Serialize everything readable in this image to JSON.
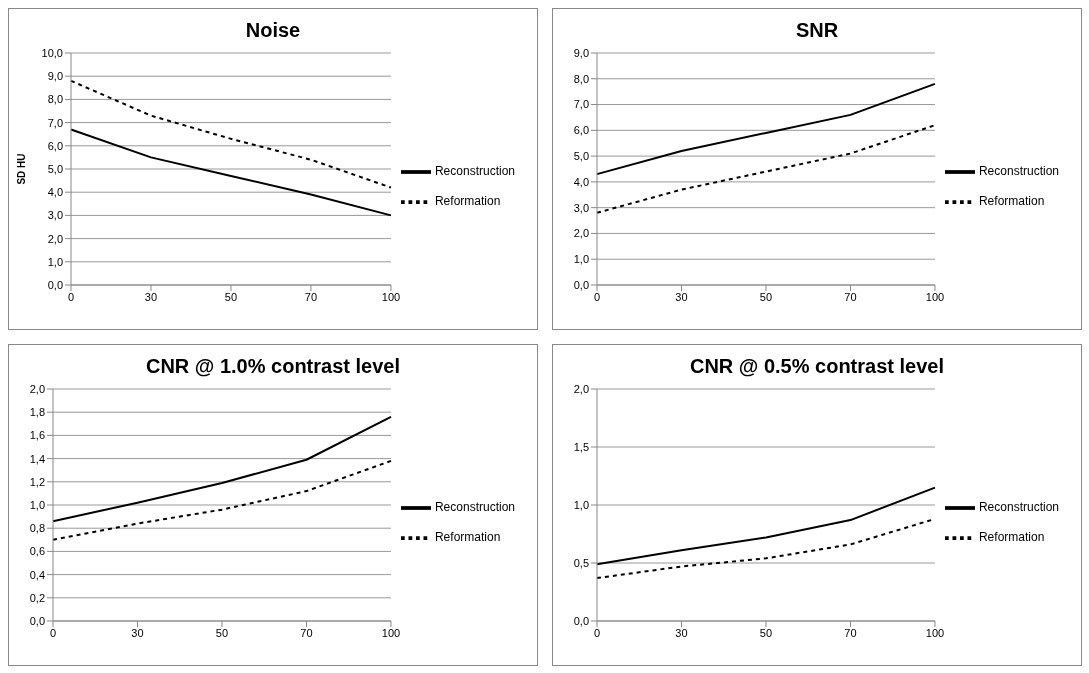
{
  "chart_data": [
    {
      "type": "line",
      "title": "Noise",
      "ylabel": "SD HU",
      "categories": [
        "0",
        "30",
        "50",
        "70",
        "100"
      ],
      "series": [
        {
          "name": "Reconstruction",
          "color": "#000000",
          "line_style": "solid",
          "values": [
            6.7,
            5.5,
            4.7,
            3.9,
            3.0
          ]
        },
        {
          "name": "Reformation",
          "color": "#000000",
          "line_style": "dashed",
          "values": [
            8.8,
            7.3,
            6.3,
            5.4,
            4.2
          ]
        }
      ],
      "ylim": [
        0,
        10
      ],
      "yticks": [
        {
          "value": 0,
          "label": "0,0"
        },
        {
          "value": 1,
          "label": "1,0"
        },
        {
          "value": 2,
          "label": "2,0"
        },
        {
          "value": 3,
          "label": "3,0"
        },
        {
          "value": 4,
          "label": "4,0"
        },
        {
          "value": 5,
          "label": "5,0"
        },
        {
          "value": 6,
          "label": "6,0"
        },
        {
          "value": 7,
          "label": "7,0"
        },
        {
          "value": 8,
          "label": "8,0"
        },
        {
          "value": 9,
          "label": "9,0"
        },
        {
          "value": 10,
          "label": "10,0"
        }
      ],
      "grid": "y",
      "legend": "right"
    },
    {
      "type": "line",
      "title": "SNR",
      "categories": [
        "0",
        "30",
        "50",
        "70",
        "100"
      ],
      "series": [
        {
          "name": "Reconstruction",
          "color": "#000000",
          "line_style": "solid",
          "values": [
            4.3,
            5.2,
            5.9,
            6.6,
            7.8
          ]
        },
        {
          "name": "Reformation",
          "color": "#000000",
          "line_style": "dashed",
          "values": [
            2.8,
            3.7,
            4.4,
            5.1,
            6.2
          ]
        }
      ],
      "ylim": [
        0,
        9
      ],
      "yticks": [
        {
          "value": 0,
          "label": "0,0"
        },
        {
          "value": 1,
          "label": "1,0"
        },
        {
          "value": 2,
          "label": "2,0"
        },
        {
          "value": 3,
          "label": "3,0"
        },
        {
          "value": 4,
          "label": "4,0"
        },
        {
          "value": 5,
          "label": "5,0"
        },
        {
          "value": 6,
          "label": "6,0"
        },
        {
          "value": 7,
          "label": "7,0"
        },
        {
          "value": 8,
          "label": "8,0"
        },
        {
          "value": 9,
          "label": "9,0"
        }
      ],
      "grid": "y",
      "legend": "right"
    },
    {
      "type": "line",
      "title": "CNR @ 1.0% contrast level",
      "categories": [
        "0",
        "30",
        "50",
        "70",
        "100"
      ],
      "series": [
        {
          "name": "Reconstruction",
          "color": "#000000",
          "line_style": "solid",
          "values": [
            0.86,
            1.02,
            1.19,
            1.39,
            1.76
          ]
        },
        {
          "name": "Reformation",
          "color": "#000000",
          "line_style": "dashed",
          "values": [
            0.7,
            0.84,
            0.96,
            1.12,
            1.38
          ]
        }
      ],
      "ylim": [
        0,
        2
      ],
      "yticks": [
        {
          "value": 0,
          "label": "0,0"
        },
        {
          "value": 0.2,
          "label": "0,2"
        },
        {
          "value": 0.4,
          "label": "0,4"
        },
        {
          "value": 0.6,
          "label": "0,6"
        },
        {
          "value": 0.8,
          "label": "0,8"
        },
        {
          "value": 1,
          "label": "1,0"
        },
        {
          "value": 1.2,
          "label": "1,2"
        },
        {
          "value": 1.4,
          "label": "1,4"
        },
        {
          "value": 1.6,
          "label": "1,6"
        },
        {
          "value": 1.8,
          "label": "1,8"
        },
        {
          "value": 2,
          "label": "2,0"
        }
      ],
      "grid": "y",
      "legend": "right"
    },
    {
      "type": "line",
      "title": "CNR @ 0.5% contrast level",
      "categories": [
        "0",
        "30",
        "50",
        "70",
        "100"
      ],
      "series": [
        {
          "name": "Reconstruction",
          "color": "#000000",
          "line_style": "solid",
          "values": [
            0.49,
            0.61,
            0.72,
            0.87,
            1.15
          ]
        },
        {
          "name": "Reformation",
          "color": "#000000",
          "line_style": "dashed",
          "values": [
            0.37,
            0.47,
            0.54,
            0.66,
            0.88
          ]
        }
      ],
      "ylim": [
        0,
        2
      ],
      "yticks": [
        {
          "value": 0,
          "label": "0,0"
        },
        {
          "value": 0.5,
          "label": "0,5"
        },
        {
          "value": 1,
          "label": "1,0"
        },
        {
          "value": 1.5,
          "label": "1,5"
        },
        {
          "value": 2,
          "label": "2,0"
        }
      ],
      "grid": "y",
      "legend": "right"
    }
  ]
}
